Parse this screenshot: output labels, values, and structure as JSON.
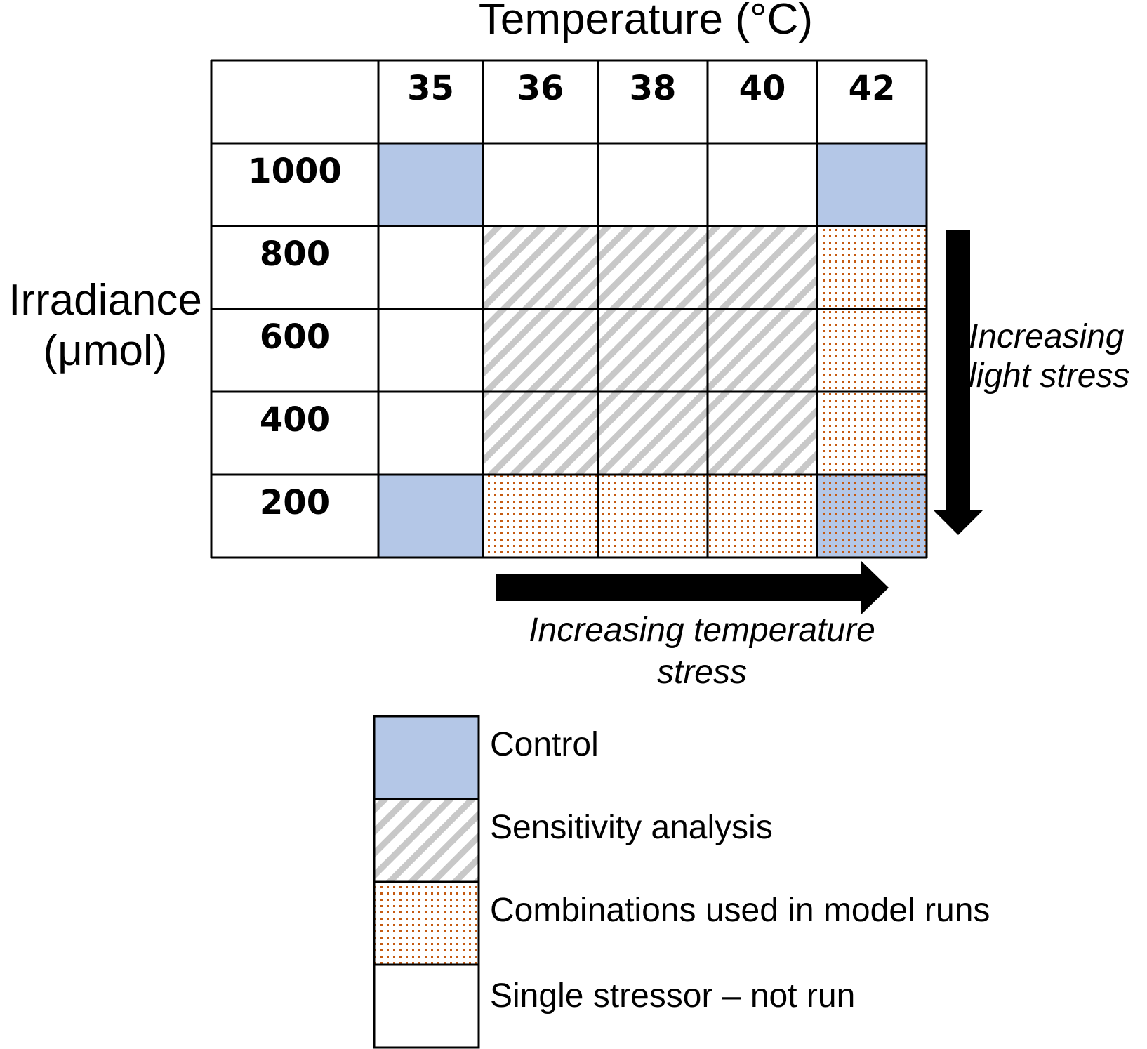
{
  "title": "Temperature (°C)",
  "y_axis_title": [
    "Irradiance",
    "(μmol)"
  ],
  "columns": [
    "35",
    "36",
    "38",
    "40",
    "42"
  ],
  "rows": [
    {
      "label": "1000",
      "cells": [
        "control",
        "none",
        "none",
        "none",
        "control"
      ]
    },
    {
      "label": "800",
      "cells": [
        "none",
        "sensitivity",
        "sensitivity",
        "sensitivity",
        "combination"
      ]
    },
    {
      "label": "600",
      "cells": [
        "none",
        "sensitivity",
        "sensitivity",
        "sensitivity",
        "combination"
      ]
    },
    {
      "label": "400",
      "cells": [
        "none",
        "sensitivity",
        "sensitivity",
        "sensitivity",
        "combination"
      ]
    },
    {
      "label": "200",
      "cells": [
        "control",
        "combination",
        "combination",
        "combination",
        "control+combination"
      ]
    }
  ],
  "arrows": {
    "light": [
      "Increasing",
      "light stress"
    ],
    "temperature": [
      "Increasing temperature",
      "stress"
    ]
  },
  "legend": [
    {
      "key": "control",
      "label": "Control"
    },
    {
      "key": "sensitivity",
      "label": "Sensitivity analysis"
    },
    {
      "key": "combination",
      "label": "Combinations used in model runs"
    },
    {
      "key": "none",
      "label": "Single stressor – not run"
    }
  ],
  "colors": {
    "control": "#b4c7e7",
    "hatch": "#c8c8c8",
    "dots": "#c55a11",
    "border": "#000000"
  }
}
